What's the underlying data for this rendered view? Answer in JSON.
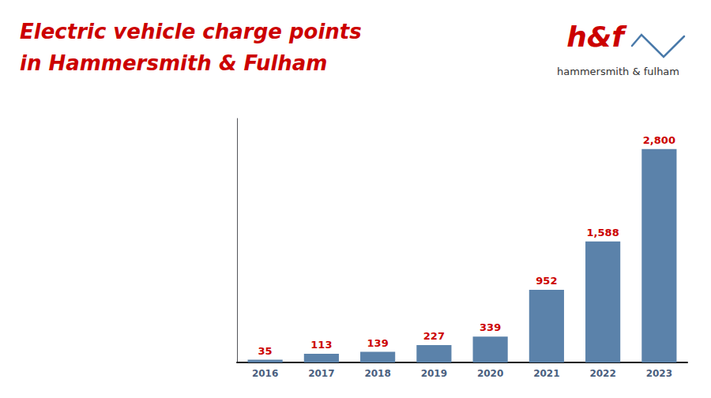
{
  "chart_data": {
    "type": "bar",
    "title": "Electric vehicle charge points",
    "subtitle": "in Hammersmith & Fulham",
    "categories": [
      "2016",
      "2017",
      "2018",
      "2019",
      "2020",
      "2021",
      "2022",
      "2023"
    ],
    "values": [
      35,
      113,
      139,
      227,
      339,
      952,
      1588,
      2800
    ],
    "value_labels": [
      "35",
      "113",
      "139",
      "227",
      "339",
      "952",
      "1,588",
      "2,800"
    ],
    "data_labels": true,
    "color": "#5b82aa",
    "ylim": [
      0,
      3200
    ],
    "tick_labels": "x",
    "grid": false,
    "annotations": [
      "h&f",
      "hammersmith & fulham"
    ]
  }
}
